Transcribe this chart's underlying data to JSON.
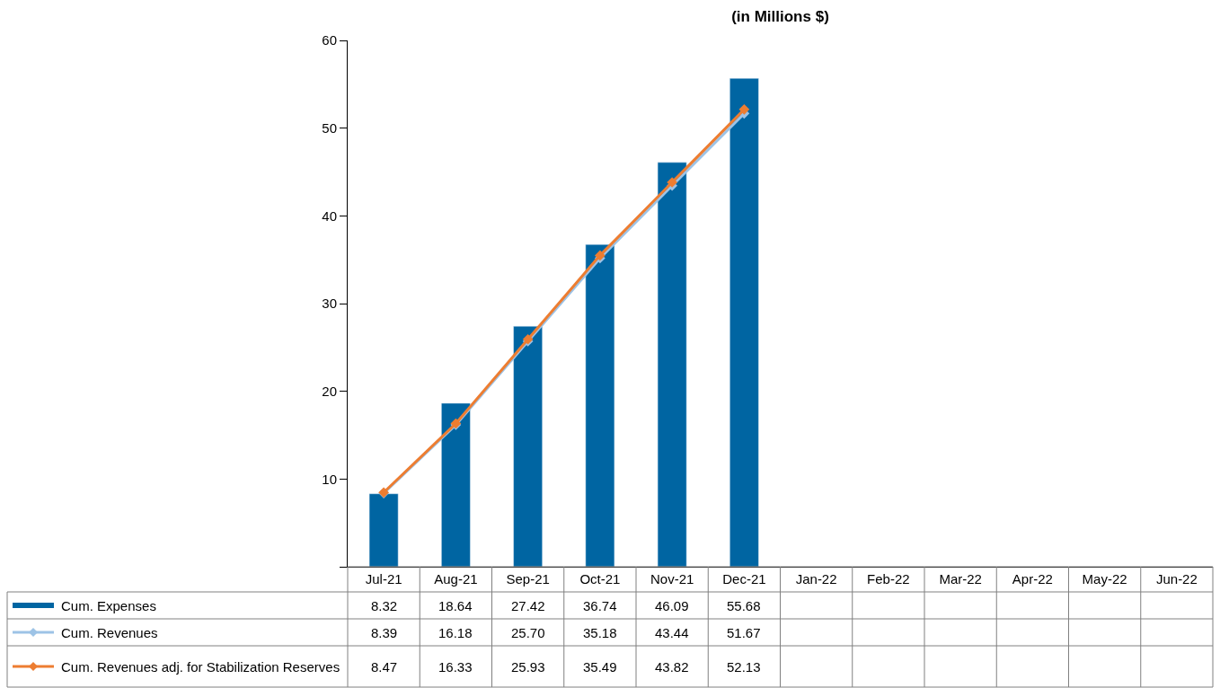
{
  "chart_data": {
    "type": "bar",
    "title": "(in Millions $)",
    "categories": [
      "Jul-21",
      "Aug-21",
      "Sep-21",
      "Oct-21",
      "Nov-21",
      "Dec-21",
      "Jan-22",
      "Feb-22",
      "Mar-22",
      "Apr-22",
      "May-22",
      "Jun-22"
    ],
    "series": [
      {
        "name": "Cum. Expenses",
        "type": "bar",
        "color": "#0065a2",
        "values": [
          8.32,
          18.64,
          27.42,
          36.74,
          46.09,
          55.68,
          null,
          null,
          null,
          null,
          null,
          null
        ]
      },
      {
        "name": "Cum. Revenues",
        "type": "line",
        "color": "#9dc3e6",
        "marker": "diamond",
        "values": [
          8.39,
          16.18,
          25.7,
          35.18,
          43.44,
          51.67,
          null,
          null,
          null,
          null,
          null,
          null
        ],
        "value_labels": [
          "8.39",
          "16.18",
          "25.70",
          "35.18",
          "43.44",
          "51.67",
          null,
          null,
          null,
          null,
          null,
          null
        ]
      },
      {
        "name": "Cum. Revenues adj. for Stabilization Reserves",
        "type": "line",
        "color": "#ed7d31",
        "marker": "diamond",
        "values": [
          8.47,
          16.33,
          25.93,
          35.49,
          43.82,
          52.13,
          null,
          null,
          null,
          null,
          null,
          null
        ]
      }
    ],
    "ylim": [
      0,
      60
    ],
    "yticks": [
      {
        "value": 0,
        "label": null
      },
      10,
      20,
      30,
      40,
      50,
      60
    ],
    "legend": "bottom left",
    "data_labels": true
  }
}
